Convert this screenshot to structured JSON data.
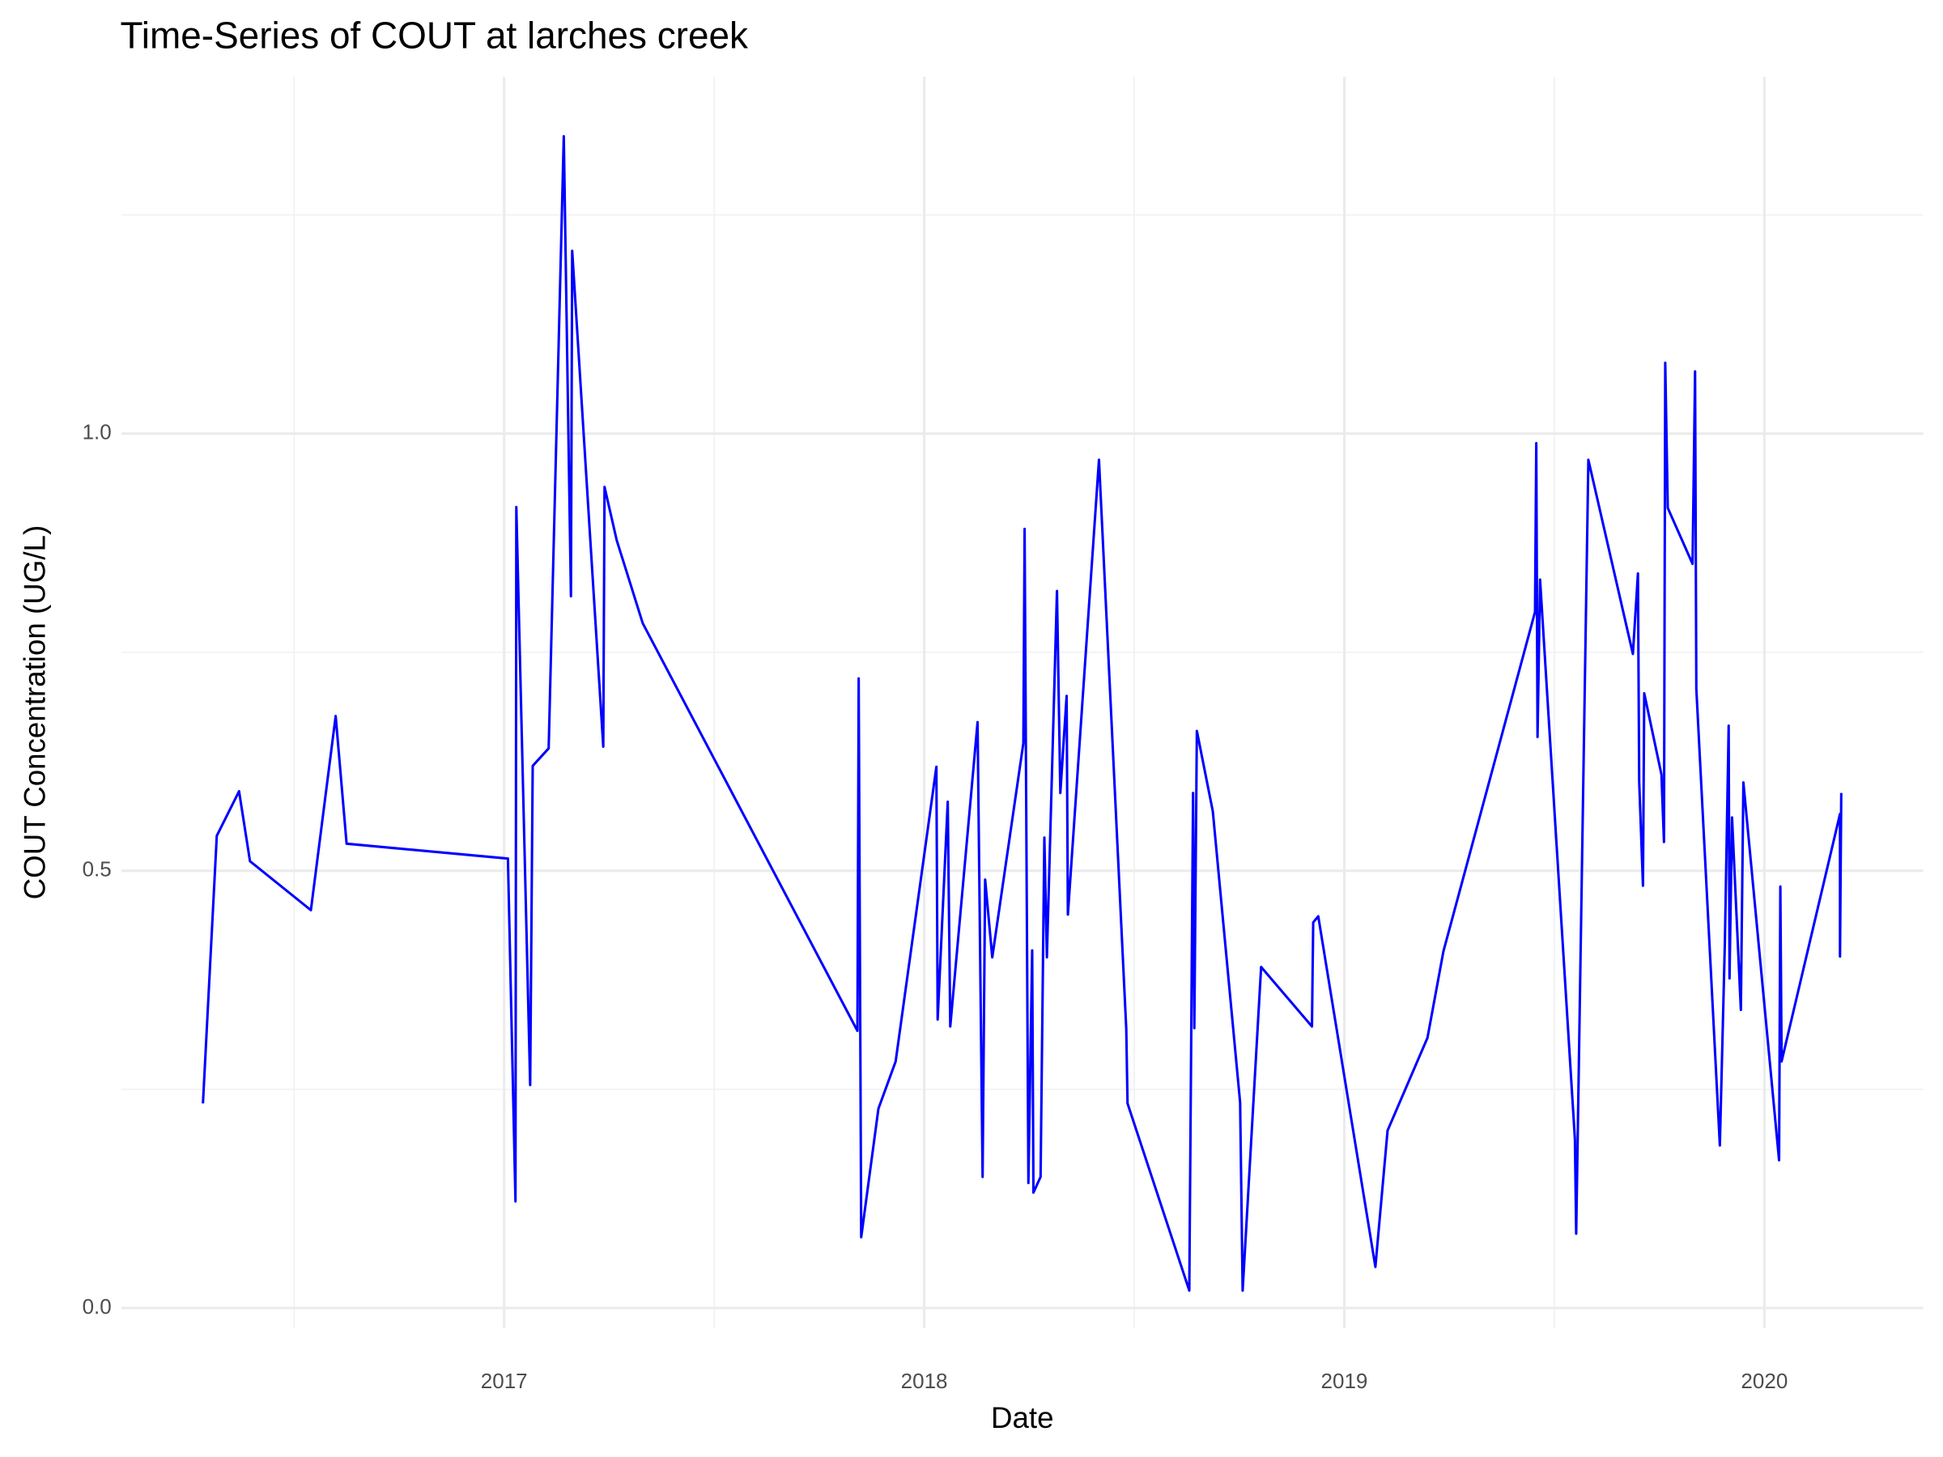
{
  "chart_data": {
    "type": "line",
    "title": "Time-Series of COUT at larches creek",
    "x_label": "Date",
    "y_label": "COUT Concentration (UG/L)",
    "color": "#0000ff",
    "grid": true,
    "xlim": [
      2016.089,
      2020.378
    ],
    "xticks": [
      2017,
      2018,
      2019,
      2020
    ],
    "x_minor_grid": [
      2016.5,
      2017.5,
      2018.5,
      2019.5
    ],
    "ylim": [
      -0.023,
      1.408
    ],
    "yticks": [
      {
        "value": 0,
        "label": "0.0"
      },
      0.5,
      {
        "value": 1,
        "label": "1.0"
      }
    ],
    "y_minor_grid": [
      0.25,
      0.75,
      1.25
    ],
    "x": [
      2016.283,
      2016.316,
      2016.369,
      2016.395,
      2016.54,
      2016.599,
      2016.625,
      2017.009,
      2017.027,
      2017.029,
      2017.062,
      2017.068,
      2017.106,
      2017.142,
      2017.159,
      2017.162,
      2017.236,
      2017.239,
      2017.268,
      2017.33,
      2017.841,
      2017.844,
      2017.85,
      2017.891,
      2017.932,
      2018.029,
      2018.032,
      2018.056,
      2018.062,
      2018.127,
      2018.139,
      2018.145,
      2018.162,
      2018.236,
      2018.239,
      2018.248,
      2018.257,
      2018.26,
      2018.277,
      2018.286,
      2018.292,
      2018.316,
      2018.324,
      2018.339,
      2018.342,
      2018.416,
      2018.481,
      2018.484,
      2018.631,
      2018.64,
      2018.643,
      2018.649,
      2018.687,
      2018.752,
      2018.758,
      2018.802,
      2018.923,
      2018.926,
      2018.938,
      2019.074,
      2019.103,
      2019.198,
      2019.236,
      2019.454,
      2019.457,
      2019.46,
      2019.466,
      2019.549,
      2019.552,
      2019.581,
      2019.687,
      2019.699,
      2019.702,
      2019.711,
      2019.714,
      2019.755,
      2019.761,
      2019.764,
      2019.77,
      2019.829,
      2019.835,
      2019.838,
      2019.894,
      2019.906,
      2019.915,
      2019.917,
      2019.923,
      2019.944,
      2019.95,
      2020.035,
      2020.038,
      2020.041,
      2020.18,
      2020.18,
      2020.183
    ],
    "values": [
      0.234,
      0.54,
      0.591,
      0.511,
      0.455,
      0.677,
      0.531,
      0.514,
      0.122,
      0.916,
      0.255,
      0.62,
      0.64,
      1.34,
      0.814,
      1.209,
      0.642,
      0.939,
      0.878,
      0.783,
      0.317,
      0.72,
      0.081,
      0.228,
      0.282,
      0.619,
      0.33,
      0.579,
      0.322,
      0.67,
      0.15,
      0.49,
      0.401,
      0.646,
      0.891,
      0.143,
      0.409,
      0.132,
      0.15,
      0.538,
      0.401,
      0.82,
      0.589,
      0.7,
      0.45,
      0.97,
      0.319,
      0.234,
      0.02,
      0.589,
      0.32,
      0.66,
      0.568,
      0.235,
      0.02,
      0.39,
      0.322,
      0.441,
      0.448,
      0.047,
      0.203,
      0.309,
      0.408,
      0.796,
      0.989,
      0.653,
      0.833,
      0.193,
      0.085,
      0.97,
      0.748,
      0.84,
      0.602,
      0.483,
      0.703,
      0.61,
      0.533,
      1.081,
      0.915,
      0.851,
      1.071,
      0.708,
      0.186,
      0.419,
      0.666,
      0.377,
      0.561,
      0.341,
      0.601,
      0.169,
      0.482,
      0.282,
      0.565,
      0.402,
      0.589
    ]
  }
}
